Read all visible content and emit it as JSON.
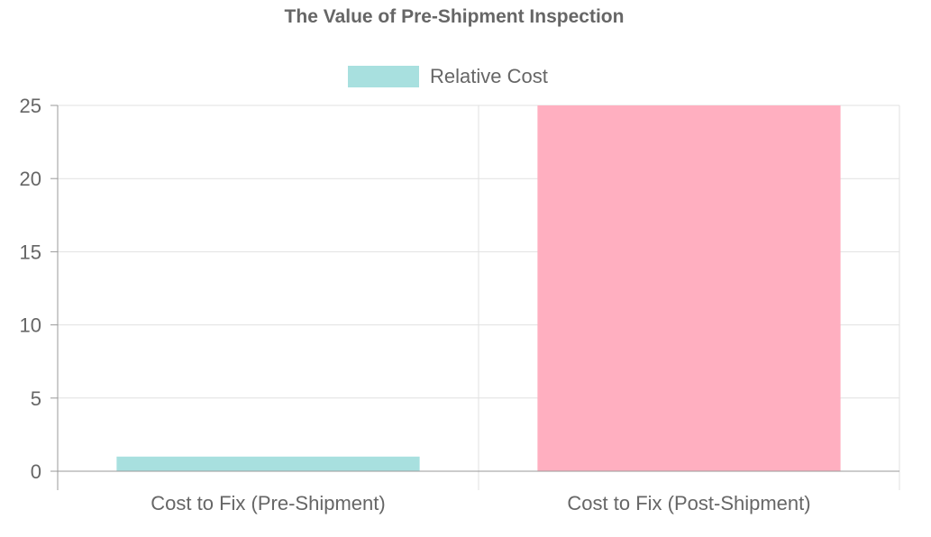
{
  "chart_data": {
    "type": "bar",
    "title": "The Value of Pre-Shipment Inspection",
    "categories": [
      "Cost to Fix (Pre-Shipment)",
      "Cost to Fix (Post-Shipment)"
    ],
    "series": [
      {
        "name": "Relative Cost",
        "values": [
          1,
          25
        ],
        "colors": [
          "#a8e0df",
          "#ffafc0"
        ]
      }
    ],
    "xlabel": "",
    "ylabel": "",
    "ylim": [
      0,
      25
    ],
    "yticks": [
      0,
      5,
      10,
      15,
      20,
      25
    ],
    "grid": true,
    "legend_position": "top-center",
    "legend_color": "#a8e0df"
  }
}
